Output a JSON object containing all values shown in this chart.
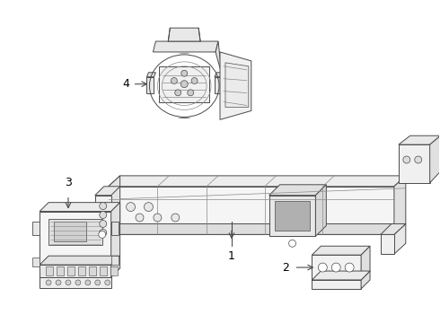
{
  "background_color": "#ffffff",
  "line_color": "#4a4a4a",
  "line_color_light": "#888888",
  "fig_width": 4.9,
  "fig_height": 3.6,
  "dpi": 100
}
